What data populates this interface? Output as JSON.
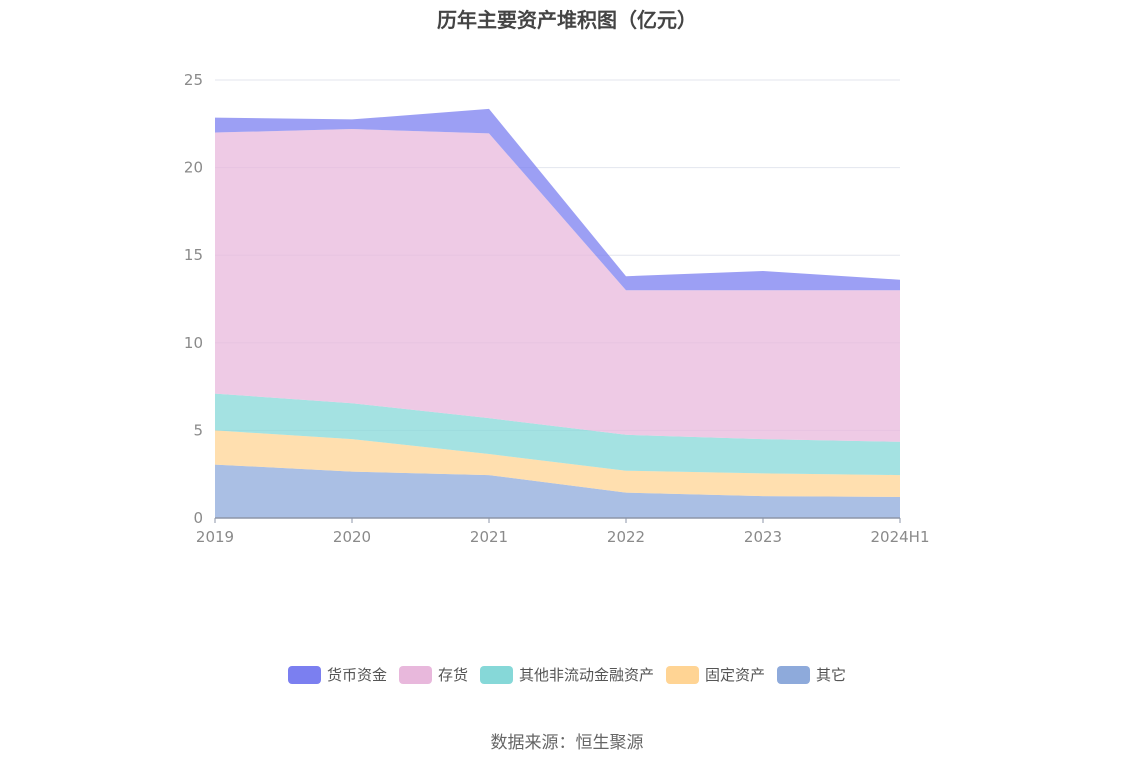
{
  "chart_data": {
    "type": "area",
    "stacked": true,
    "title": "历年主要资产堆积图（亿元）",
    "categories": [
      "2019",
      "2020",
      "2021",
      "2022",
      "2023",
      "2024H1"
    ],
    "yticks": [
      "0",
      "5",
      "10",
      "15",
      "20",
      "25"
    ],
    "ylim": [
      0,
      25
    ],
    "grid": true,
    "legend_position": "bottom",
    "series": [
      {
        "name": "其它",
        "color": "#8eaadb",
        "values": [
          3.05,
          2.65,
          2.45,
          1.45,
          1.25,
          1.2
        ]
      },
      {
        "name": "固定资产",
        "color": "#ffd494",
        "values": [
          1.95,
          1.85,
          1.2,
          1.25,
          1.3,
          1.25
        ]
      },
      {
        "name": "其他非流动金融资产",
        "color": "#86d8d8",
        "values": [
          2.1,
          2.05,
          2.05,
          2.05,
          1.95,
          1.9
        ]
      },
      {
        "name": "存货",
        "color": "#e8b8dc",
        "values": [
          14.9,
          15.65,
          16.25,
          8.25,
          8.5,
          8.65
        ]
      },
      {
        "name": "货币资金",
        "color": "#7b7ff0",
        "values": [
          0.85,
          0.55,
          1.4,
          0.8,
          1.1,
          0.6
        ]
      }
    ]
  },
  "legend_items": [
    {
      "label": "货币资金",
      "color": "#7b7ff0"
    },
    {
      "label": "存货",
      "color": "#e8b8dc"
    },
    {
      "label": "其他非流动金融资产",
      "color": "#86d8d8"
    },
    {
      "label": "固定资产",
      "color": "#ffd494"
    },
    {
      "label": "其它",
      "color": "#8eaadb"
    }
  ],
  "source_text": "数据来源：恒生聚源"
}
